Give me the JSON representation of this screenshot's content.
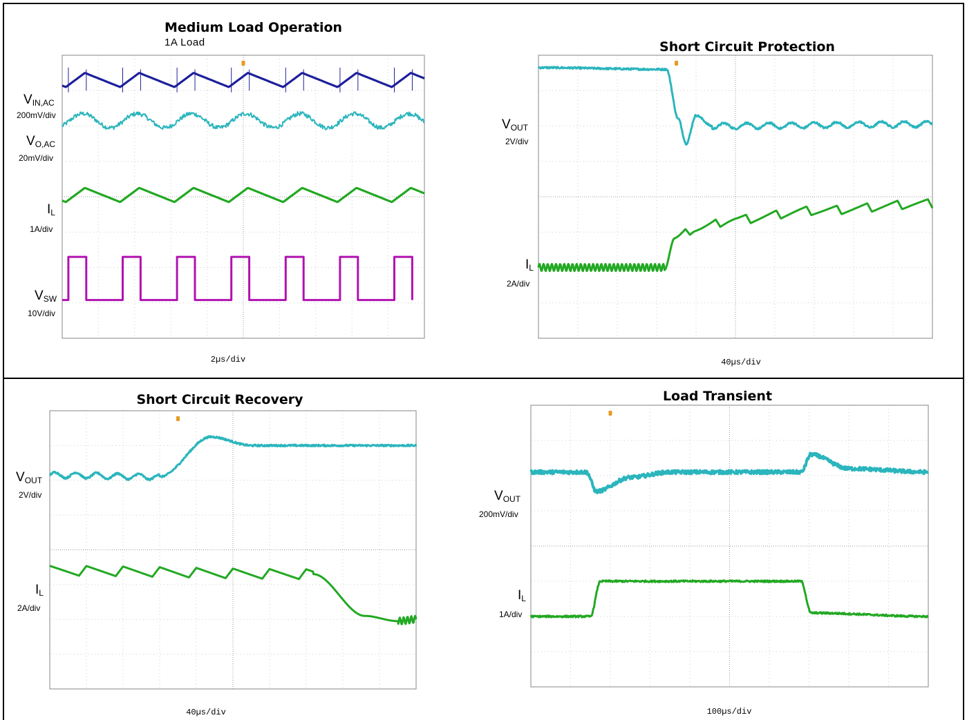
{
  "colors": {
    "vin_ac": "#1c1f9a",
    "v_out": "#2bb5bd",
    "i_l": "#22a822",
    "v_sw": "#b012b0",
    "trigger": "#e89a20"
  },
  "chart_data": [
    {
      "type": "line",
      "title": "Medium Load Operation",
      "subtitle": "1A Load",
      "time_scale": "2µs/div",
      "x_range_div": [
        0,
        10
      ],
      "grid": true,
      "series": [
        {
          "name": "VIN,AC",
          "name_main": "V",
          "name_sub": "IN,AC",
          "scale": "200mV/div",
          "waveform": "triangle",
          "period_div": 1.5,
          "mean_div": 7.3,
          "amp_div": 0.2,
          "spikes": true
        },
        {
          "name": "VO,AC",
          "name_main": "V",
          "name_sub": "O,AC",
          "scale": "20mV/div",
          "waveform": "sine",
          "period_div": 1.5,
          "mean_div": 6.15,
          "amp_div": 0.2,
          "noise": true
        },
        {
          "name": "IL",
          "name_main": "I",
          "name_sub": "L",
          "scale": "1A/div",
          "waveform": "triangle",
          "period_div": 1.5,
          "mean_div": 4.05,
          "amp_div": 0.2
        },
        {
          "name": "VSW",
          "name_main": "V",
          "name_sub": "SW",
          "scale": "10V/div",
          "waveform": "pulse",
          "period_div": 1.5,
          "duty": 0.33,
          "high_div": 2.3,
          "low_div": 1.08
        }
      ]
    },
    {
      "type": "line",
      "title": "Short Circuit Protection",
      "time_scale": "40µs/div",
      "x_range_div": [
        0,
        10
      ],
      "grid": true,
      "series": [
        {
          "name": "VOUT",
          "name_main": "V",
          "name_sub": "OUT",
          "scale": "2V/div",
          "points_div": [
            [
              0,
              7.65
            ],
            [
              3.25,
              7.6
            ],
            [
              3.55,
              6.2
            ],
            [
              3.75,
              5.5
            ],
            [
              4.0,
              6.3
            ],
            [
              4.4,
              6.0
            ],
            [
              10,
              6.05
            ]
          ]
        },
        {
          "name": "IL",
          "name_main": "I",
          "name_sub": "L",
          "scale": "2A/div",
          "points_div": [
            [
              0,
              2.0
            ],
            [
              3.2,
              2.0
            ],
            [
              3.45,
              2.8
            ],
            [
              4.0,
              3.1
            ],
            [
              5.0,
              3.35
            ],
            [
              7.0,
              3.6
            ],
            [
              10,
              3.8
            ]
          ]
        }
      ]
    },
    {
      "type": "line",
      "title": "Short Circuit Recovery",
      "time_scale": "40µs/div",
      "x_range_div": [
        0,
        10
      ],
      "grid": true,
      "series": [
        {
          "name": "VOUT",
          "name_main": "V",
          "name_sub": "OUT",
          "scale": "2V/div",
          "points_div": [
            [
              0,
              6.15
            ],
            [
              3.0,
              6.1
            ],
            [
              4.4,
              7.25
            ],
            [
              5.5,
              7.0
            ],
            [
              10,
              7.0
            ]
          ]
        },
        {
          "name": "IL",
          "name_main": "I",
          "name_sub": "L",
          "scale": "2A/div",
          "points_div": [
            [
              0,
              3.4
            ],
            [
              7.2,
              3.3
            ],
            [
              8.6,
              2.1
            ],
            [
              9.5,
              1.95
            ],
            [
              10,
              2.0
            ]
          ]
        }
      ]
    },
    {
      "type": "line",
      "title": "Load Transient",
      "time_scale": "100µs/div",
      "x_range_div": [
        0,
        10
      ],
      "grid": true,
      "series": [
        {
          "name": "VOUT",
          "name_main": "V",
          "name_sub": "OUT",
          "scale": "200mV/div",
          "points_div": [
            [
              0,
              6.1
            ],
            [
              1.4,
              6.1
            ],
            [
              1.65,
              5.55
            ],
            [
              2.5,
              5.95
            ],
            [
              3.5,
              6.1
            ],
            [
              6.8,
              6.1
            ],
            [
              7.05,
              6.6
            ],
            [
              8.0,
              6.2
            ],
            [
              10,
              6.1
            ]
          ]
        },
        {
          "name": "IL",
          "name_main": "I",
          "name_sub": "L",
          "scale": "1A/div",
          "points_div": [
            [
              0,
              2.0
            ],
            [
              1.5,
              2.0
            ],
            [
              1.75,
              3.0
            ],
            [
              6.8,
              3.0
            ],
            [
              7.05,
              2.1
            ],
            [
              10,
              2.0
            ]
          ]
        }
      ]
    }
  ]
}
